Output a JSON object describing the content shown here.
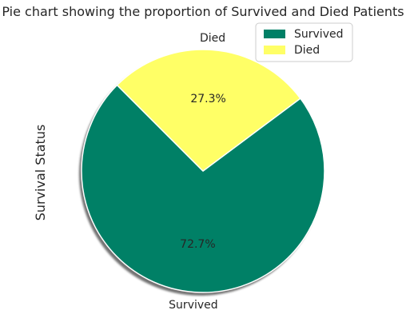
{
  "chart_data": {
    "type": "pie",
    "title": "Pie chart showing the proportion of Survived and Died Patients",
    "ylabel": "Survival Status",
    "categories": [
      "Survived",
      "Died"
    ],
    "values": [
      72.7,
      27.3
    ],
    "percent_labels": [
      "72.7%",
      "27.3%"
    ],
    "colors": [
      "#008066",
      "#ffff66"
    ],
    "legend": {
      "position": "upper-right",
      "entries": [
        "Survived",
        "Died"
      ]
    },
    "shadow": true,
    "start_angle_deg": 135
  }
}
